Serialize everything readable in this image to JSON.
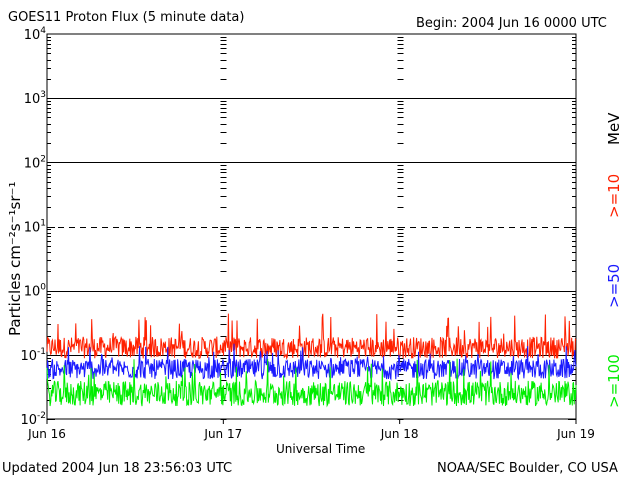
{
  "header": {
    "title": "GOES11 Proton Flux (5 minute data)",
    "begin": "Begin: 2004 Jun 16 0000 UTC"
  },
  "footer": {
    "updated": "Updated 2004 Jun 18 23:56:03 UTC",
    "source": "NOAA/SEC Boulder, CO USA"
  },
  "chart_data": {
    "type": "line",
    "xlabel": "Universal Time",
    "ylabel": "Particles cm⁻²s⁻¹sr⁻¹",
    "x_ticks": [
      "Jun 16",
      "Jun 17",
      "Jun 18",
      "Jun 19"
    ],
    "xlim": [
      "2004-06-16 00:00",
      "2004-06-19 00:00"
    ],
    "y_scale": "log",
    "ylim": [
      0.01,
      10000
    ],
    "y_ticks": [
      {
        "base": "10",
        "exp": "-2"
      },
      {
        "base": "10",
        "exp": "-1"
      },
      {
        "base": "10",
        "exp": "0"
      },
      {
        "base": "10",
        "exp": "1"
      },
      {
        "base": "10",
        "exp": "2"
      },
      {
        "base": "10",
        "exp": "3"
      },
      {
        "base": "10",
        "exp": "4"
      }
    ],
    "unit_label": "MeV",
    "series": [
      {
        "name": ">=10",
        "color": "#ff2000",
        "typical": 0.13,
        "min": 0.08,
        "max": 0.45
      },
      {
        "name": ">=50",
        "color": "#1a1aff",
        "typical": 0.06,
        "min": 0.03,
        "max": 0.15
      },
      {
        "name": ">=100",
        "color": "#00ee00",
        "typical": 0.025,
        "min": 0.012,
        "max": 0.09
      }
    ],
    "reference_lines": [
      {
        "value": 10,
        "style": "dashed"
      }
    ],
    "grid": true
  }
}
